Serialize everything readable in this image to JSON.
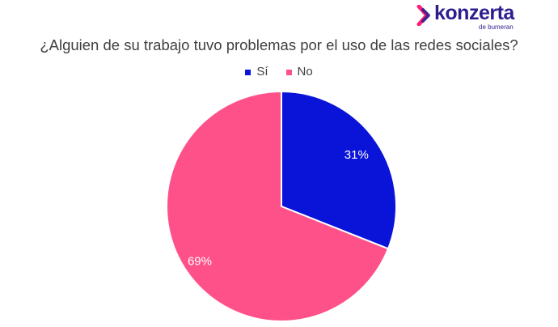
{
  "brand": {
    "name": "konzerta",
    "tagline": "de bumeran",
    "color": "#2c1e8f",
    "mark_colors": [
      "#ff1f78",
      "#2c1e8f"
    ]
  },
  "chart_data": {
    "type": "pie",
    "title": "¿Alguien de su trabajo tuvo problemas por el uso de las redes sociales?",
    "categories": [
      "Sí",
      "No"
    ],
    "values": [
      31,
      69
    ],
    "data_labels": [
      "31%",
      "69%"
    ],
    "colors": [
      "#0a14d9",
      "#ff5189"
    ],
    "legend_position": "top"
  }
}
